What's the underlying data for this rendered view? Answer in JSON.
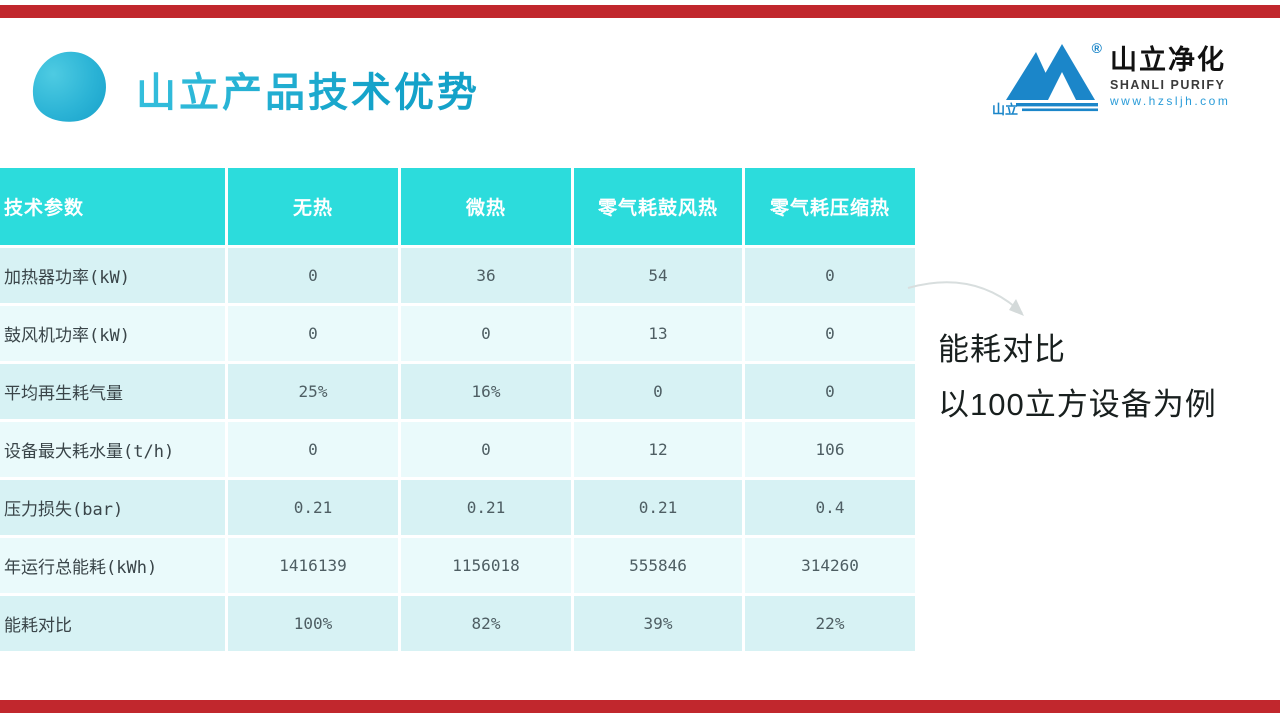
{
  "slide": {
    "title": "山立产品技术优势"
  },
  "logo": {
    "brand_cn": "山立净化",
    "brand_en": "SHANLI PURIFY",
    "website": "www.hzsljh.com",
    "icon_label": "山立",
    "registered_mark": "®"
  },
  "table": {
    "headers": [
      "技术参数",
      "无热",
      "微热",
      "零气耗鼓风热",
      "零气耗压缩热"
    ],
    "rows": [
      {
        "label": "加热器功率(kW)",
        "values": [
          "0",
          "36",
          "54",
          "0"
        ]
      },
      {
        "label": "鼓风机功率(kW)",
        "values": [
          "0",
          "0",
          "13",
          "0"
        ]
      },
      {
        "label": "平均再生耗气量",
        "values": [
          "25%",
          "16%",
          "0",
          "0"
        ]
      },
      {
        "label": "设备最大耗水量(t/h)",
        "values": [
          "0",
          "0",
          "12",
          "106"
        ]
      },
      {
        "label": "压力损失(bar)",
        "values": [
          "0.21",
          "0.21",
          "0.21",
          "0.4"
        ]
      },
      {
        "label": "年运行总能耗(kWh)",
        "values": [
          "1416139",
          "1156018",
          "555846",
          "314260"
        ]
      },
      {
        "label": "能耗对比",
        "values": [
          "100%",
          "82%",
          "39%",
          "22%"
        ]
      }
    ]
  },
  "annotation": {
    "line1": "能耗对比",
    "line2": "以100立方设备为例"
  },
  "colors": {
    "accent_bar_red": "#c1272d",
    "title_teal": "#19a9cd",
    "table_header_teal": "#2cdcdc",
    "row_shade_dark": "#d7f2f4",
    "row_shade_light": "#eafafb",
    "logo_blue": "#1b86c9",
    "arrow_gray": "#d8dede"
  }
}
